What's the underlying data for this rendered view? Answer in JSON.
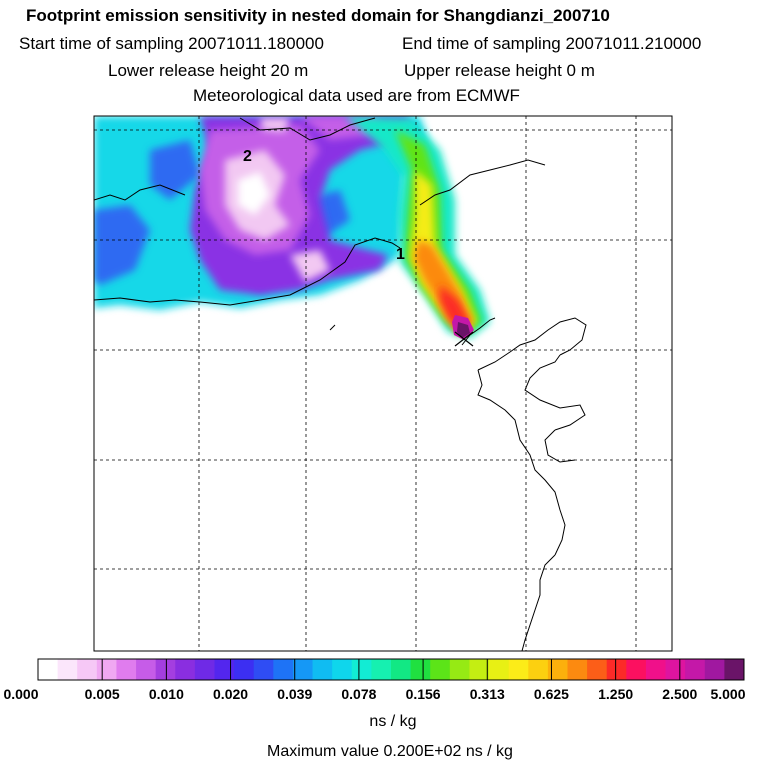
{
  "header": {
    "title": "Footprint emission sensitivity in nested domain for Shangdianzi_200710",
    "start_label": "Start time of sampling 20071011.180000",
    "end_label": "End time of sampling 20071011.210000",
    "lower_label": "Lower release height   20 m",
    "upper_label": "Upper release height    0 m",
    "met_label": "Meteorological data used are from ECMWF"
  },
  "map": {
    "markers": [
      {
        "label": "1"
      },
      {
        "label": "2"
      }
    ]
  },
  "colorbar": {
    "ticks": [
      "0.000",
      "0.005",
      "0.010",
      "0.020",
      "0.039",
      "0.078",
      "0.156",
      "0.313",
      "0.625",
      "1.250",
      "2.500",
      "5.000"
    ],
    "colors": [
      "#ffffff",
      "#fbe6fb",
      "#f6c8f6",
      "#f0a8f2",
      "#e07cee",
      "#c65ce8",
      "#a43ee0",
      "#8a2ee0",
      "#6f2ae6",
      "#5326ee",
      "#3c2ff2",
      "#2f4df4",
      "#1e73f6",
      "#1598f6",
      "#10bcf2",
      "#0fd6ec",
      "#12ecd4",
      "#16f0b0",
      "#12e884",
      "#20e040",
      "#5ce418",
      "#96ea14",
      "#c4ee12",
      "#e8f014",
      "#fcec18",
      "#fcd010",
      "#fcb00c",
      "#fc8a10",
      "#fc5e18",
      "#fc2a28",
      "#fc1060",
      "#f0108a",
      "#de14a0",
      "#c418a8",
      "#a018a0",
      "#6a1468"
    ],
    "unit": "ns / kg",
    "max_label": "Maximum value  0.200E+02 ns / kg"
  }
}
